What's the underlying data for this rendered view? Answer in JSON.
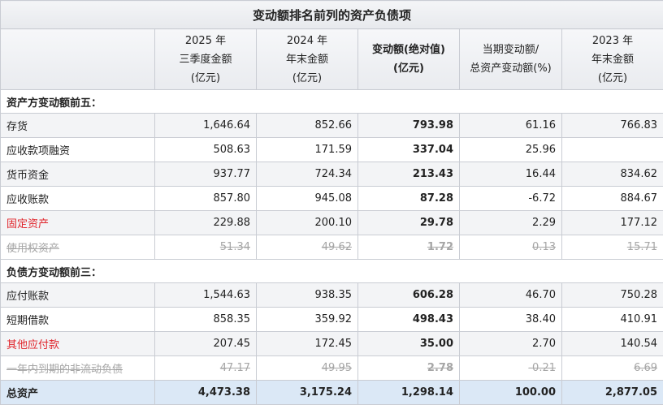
{
  "title": "变动额排名前列的资产负债项",
  "headers": [
    "",
    "2025 年\n三季度金额\n(亿元)",
    "2024 年\n年末金额\n(亿元)",
    "变动额(绝对值)\n(亿元)",
    "当期变动额/\n总资产变动额(%)",
    "2023 年\n年末金额\n(亿元)"
  ],
  "sections": [
    {
      "label": "资产方变动额前五：",
      "rows": [
        {
          "name": "存货",
          "q3_2025": "1,646.64",
          "end_2024": "852.66",
          "change": "793.98",
          "ratio": "61.16",
          "end_2023": "766.83",
          "style": "normal"
        },
        {
          "name": "应收款项融资",
          "q3_2025": "508.63",
          "end_2024": "171.59",
          "change": "337.04",
          "ratio": "25.96",
          "end_2023": "",
          "style": "normal"
        },
        {
          "name": "货币资金",
          "q3_2025": "937.77",
          "end_2024": "724.34",
          "change": "213.43",
          "ratio": "16.44",
          "end_2023": "834.62",
          "style": "normal"
        },
        {
          "name": "应收账款",
          "q3_2025": "857.80",
          "end_2024": "945.08",
          "change": "87.28",
          "ratio": "-6.72",
          "end_2023": "884.67",
          "style": "normal"
        },
        {
          "name": "固定资产",
          "q3_2025": "229.88",
          "end_2024": "200.10",
          "change": "29.78",
          "ratio": "2.29",
          "end_2023": "177.12",
          "style": "red"
        },
        {
          "name": "使用权资产",
          "q3_2025": "51.34",
          "end_2024": "49.62",
          "change": "1.72",
          "ratio": "0.13",
          "end_2023": "15.71",
          "style": "struck"
        }
      ]
    },
    {
      "label": "负债方变动额前三：",
      "rows": [
        {
          "name": "应付账款",
          "q3_2025": "1,544.63",
          "end_2024": "938.35",
          "change": "606.28",
          "ratio": "46.70",
          "end_2023": "750.28",
          "style": "normal"
        },
        {
          "name": "短期借款",
          "q3_2025": "858.35",
          "end_2024": "359.92",
          "change": "498.43",
          "ratio": "38.40",
          "end_2023": "410.91",
          "style": "normal"
        },
        {
          "name": "其他应付款",
          "q3_2025": "207.45",
          "end_2024": "172.45",
          "change": "35.00",
          "ratio": "2.70",
          "end_2023": "140.54",
          "style": "red"
        },
        {
          "name": "一年内到期的非流动负债",
          "q3_2025": "47.17",
          "end_2024": "49.95",
          "change": "2.78",
          "ratio": "-0.21",
          "end_2023": "6.69",
          "style": "struck"
        }
      ]
    }
  ],
  "total": {
    "name": "总资产",
    "q3_2025": "4,473.38",
    "end_2024": "3,175.24",
    "change": "1,298.14",
    "ratio": "100.00",
    "end_2023": "2,877.05"
  },
  "colors": {
    "accent_red": "#e0242b",
    "struck_gray": "#a6a6a6",
    "total_bg": "#dbe8f6",
    "header_bg": "#e9ebef"
  }
}
